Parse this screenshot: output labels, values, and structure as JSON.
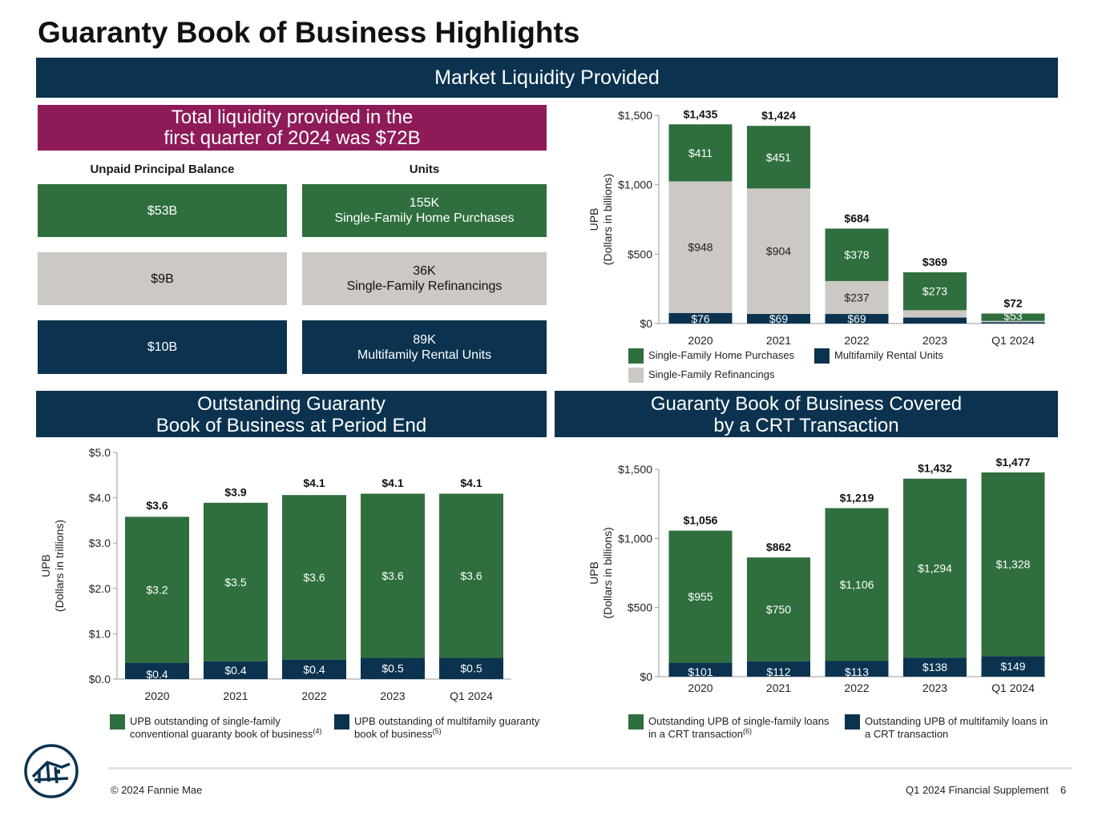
{
  "page_title": "Guaranty Book of Business Highlights",
  "main_banner": "Market Liquidity Provided",
  "liquidity_headline": "Total liquidity provided in the\nfirst quarter of 2024 was $72B",
  "upb_header": "Unpaid Principal Balance",
  "units_header": "Units",
  "boxes": [
    {
      "upb": "$53B",
      "units": "155K\nSingle-Family Home Purchases"
    },
    {
      "upb": "$9B",
      "units": "36K\nSingle-Family Refinancings"
    },
    {
      "upb": "$10B",
      "units": "89K\nMultifamily Rental Units"
    }
  ],
  "outstanding_banner": "Outstanding Guaranty\nBook of Business at Period End",
  "crt_banner": "Guaranty Book of Business Covered\nby a CRT Transaction",
  "colors": {
    "green": "#2f6f3e",
    "light": "#ccc8c3",
    "navy": "#0b3350",
    "magenta": "#8e1b58"
  },
  "footer": {
    "copyright": "© 2024 Fannie Mae",
    "supplement": "Q1 2024 Financial Supplement",
    "page": "6"
  },
  "logo_icon": "fannie-mae-house-logo-icon",
  "chart_data": [
    {
      "type": "bar",
      "stacked": true,
      "categories": [
        "2020",
        "2021",
        "2022",
        "2023",
        "Q1 2024"
      ],
      "ylabel": "UPB\n(Dollars in billions)",
      "ylim": [
        0,
        1500
      ],
      "yticks": [
        0,
        500,
        1000,
        1500
      ],
      "ytick_labels": [
        "$0",
        "$500",
        "$1,000",
        "$1,500"
      ],
      "totals": [
        1435,
        1424,
        684,
        369,
        72
      ],
      "total_labels": [
        "$1,435",
        "$1,424",
        "$684",
        "$369",
        "$72"
      ],
      "series": [
        {
          "name": "Multifamily Rental Units",
          "color": "#0b3350",
          "values": [
            76,
            69,
            69,
            43,
            10
          ],
          "labels": [
            "$76",
            "$69",
            "$69",
            "",
            ""
          ],
          "label_color": "#ffffff"
        },
        {
          "name": "Single-Family Refinancings",
          "color": "#ccc8c3",
          "values": [
            948,
            904,
            237,
            53,
            9
          ],
          "labels": [
            "$948",
            "$904",
            "$237",
            "",
            ""
          ],
          "label_color": "#222222"
        },
        {
          "name": "Single-Family Home Purchases",
          "color": "#2f6f3e",
          "values": [
            411,
            451,
            378,
            273,
            53
          ],
          "labels": [
            "$411",
            "$451",
            "$378",
            "$273",
            "$53"
          ],
          "label_color": "#ffffff"
        }
      ],
      "legend": [
        {
          "label": "Single-Family Home Purchases",
          "color": "#2f6f3e"
        },
        {
          "label": "Multifamily Rental Units",
          "color": "#0b3350"
        },
        {
          "label": "Single-Family Refinancings",
          "color": "#ccc8c3"
        }
      ],
      "legend_placement": "bottom"
    },
    {
      "type": "bar",
      "stacked": true,
      "categories": [
        "2020",
        "2021",
        "2022",
        "2023",
        "Q1 2024"
      ],
      "ylabel": "UPB\n(Dollars in trillions)",
      "ylim": [
        0,
        5
      ],
      "yticks": [
        0,
        1,
        2,
        3,
        4,
        5
      ],
      "ytick_labels": [
        "$0.0",
        "$1.0",
        "$2.0",
        "$3.0",
        "$4.0",
        "$5.0"
      ],
      "totals": [
        3.6,
        3.9,
        4.1,
        4.1,
        4.1
      ],
      "total_labels": [
        "$3.6",
        "$3.9",
        "$4.1",
        "$4.1",
        "$4.1"
      ],
      "series": [
        {
          "name": "UPB outstanding of multifamily guaranty book of business",
          "color": "#0b3350",
          "values": [
            0.36,
            0.39,
            0.43,
            0.47,
            0.47
          ],
          "labels": [
            "$0.4",
            "$0.4",
            "$0.4",
            "$0.5",
            "$0.5"
          ],
          "label_color": "#ffffff"
        },
        {
          "name": "UPB outstanding of single-family conventional guaranty book of business",
          "color": "#2f6f3e",
          "values": [
            3.22,
            3.5,
            3.63,
            3.62,
            3.62
          ],
          "labels": [
            "$3.2",
            "$3.5",
            "$3.6",
            "$3.6",
            "$3.6"
          ],
          "label_color": "#ffffff"
        }
      ],
      "legend": [
        {
          "label": "UPB outstanding of single-family\nconventional guaranty book of business",
          "sup": "(4)",
          "color": "#2f6f3e"
        },
        {
          "label": "UPB outstanding of multifamily guaranty\nbook of business",
          "sup": "(5)",
          "color": "#0b3350"
        }
      ],
      "legend_placement": "bottom"
    },
    {
      "type": "bar",
      "stacked": true,
      "categories": [
        "2020",
        "2021",
        "2022",
        "2023",
        "Q1 2024"
      ],
      "ylabel": "UPB\n(Dollars in billions)",
      "ylim": [
        0,
        1500
      ],
      "yticks": [
        0,
        500,
        1000,
        1500
      ],
      "ytick_labels": [
        "$0",
        "$500",
        "$1,000",
        "$1,500"
      ],
      "totals": [
        1056,
        862,
        1219,
        1432,
        1477
      ],
      "total_labels": [
        "$1,056",
        "$862",
        "$1,219",
        "$1,432",
        "$1,477"
      ],
      "series": [
        {
          "name": "Outstanding UPB of multifamily loans in a CRT transaction",
          "color": "#0b3350",
          "values": [
            101,
            112,
            113,
            138,
            149
          ],
          "labels": [
            "$101",
            "$112",
            "$113",
            "$138",
            "$149"
          ],
          "label_color": "#ffffff"
        },
        {
          "name": "Outstanding UPB of single-family loans in a CRT transaction",
          "color": "#2f6f3e",
          "values": [
            955,
            750,
            1106,
            1294,
            1328
          ],
          "labels": [
            "$955",
            "$750",
            "$1,106",
            "$1,294",
            "$1,328"
          ],
          "label_color": "#ffffff"
        }
      ],
      "legend": [
        {
          "label": "Outstanding UPB of single-family loans\nin a CRT transaction",
          "sup": "(6)",
          "color": "#2f6f3e"
        },
        {
          "label": "Outstanding UPB of multifamily loans in\na CRT transaction",
          "sup": "",
          "color": "#0b3350"
        }
      ],
      "legend_placement": "bottom"
    }
  ]
}
